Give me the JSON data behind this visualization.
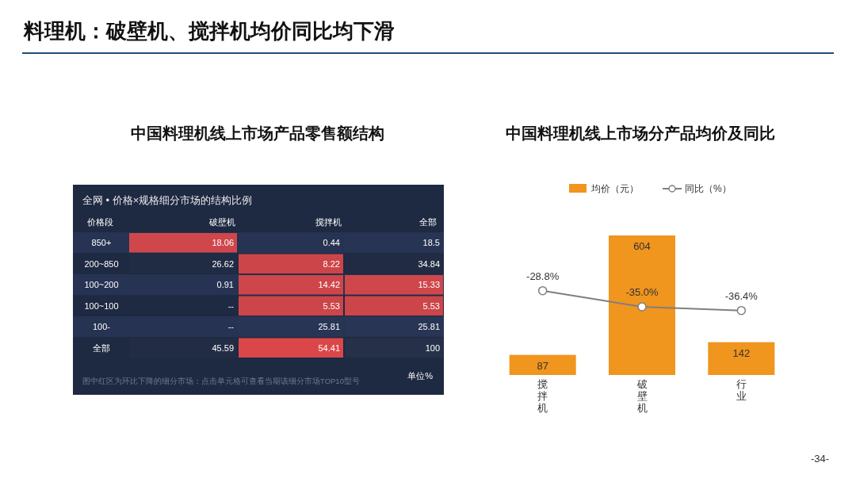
{
  "chart_data": [
    {
      "type": "heatmap",
      "title": "中国料理机线上市场产品零售额结构",
      "subtitle": "全网 • 价格×规格细分市场的结构比例",
      "ylabel": "价格段",
      "annotations": [
        "料理机：破壁机、搅拌机均价同比均下滑",
        "图中红区为环比下降的细分市场：点击单元格可查看当期该细分市场TOP10型号",
        "单位%"
      ],
      "categories": [
        "破壁机",
        "搅拌机",
        "全部"
      ],
      "y_categories": [
        "850+",
        "200~850",
        "100~200",
        "100~100",
        "100-",
        "全部"
      ],
      "cells": [
        [
          18.06,
          0.44,
          18.5
        ],
        [
          26.62,
          8.22,
          34.84
        ],
        [
          0.91,
          14.42,
          15.33
        ],
        [
          null,
          5.53,
          5.53
        ],
        [
          null,
          25.81,
          25.81
        ],
        [
          45.59,
          54.41,
          100
        ]
      ],
      "cell_labels": [
        [
          "18.06",
          "0.44",
          "18.5"
        ],
        [
          "26.62",
          "8.22",
          "34.84"
        ],
        [
          "0.91",
          "14.42",
          "15.33"
        ],
        [
          "--",
          "5.53",
          "5.53"
        ],
        [
          "--",
          "25.81",
          "25.81"
        ],
        [
          "45.59",
          "54.41",
          "100"
        ]
      ],
      "colors": [
        [
          "#e84a4a",
          null,
          null
        ],
        [
          null,
          "#e84a4a",
          null
        ],
        [
          null,
          "#e84a4a",
          "#e84a4a"
        ],
        [
          null,
          "#e84a4a",
          "#e84a4a"
        ],
        [
          null,
          null,
          null
        ],
        [
          null,
          "#e84a4a",
          null
        ]
      ]
    },
    {
      "type": "bar",
      "title": "中国料理机线上市场分产品均价及同比",
      "annotations": [
        "-34-"
      ],
      "categories": [
        "搅拌机",
        "破壁机",
        "行业"
      ],
      "legend": "top",
      "data_labels": true,
      "series": [
        {
          "name": "均价（元）",
          "color": "#f0951e",
          "values": [
            87,
            604,
            142
          ]
        },
        {
          "name": "同比（%）",
          "type": "line",
          "axis": "y2",
          "color": "#7f7f7f",
          "marker": "circle",
          "values": [
            -28.8,
            -35.0,
            -36.4
          ],
          "value_labels": [
            "-28.8%",
            "-35.0%",
            "-36.4%"
          ]
        }
      ]
    }
  ]
}
